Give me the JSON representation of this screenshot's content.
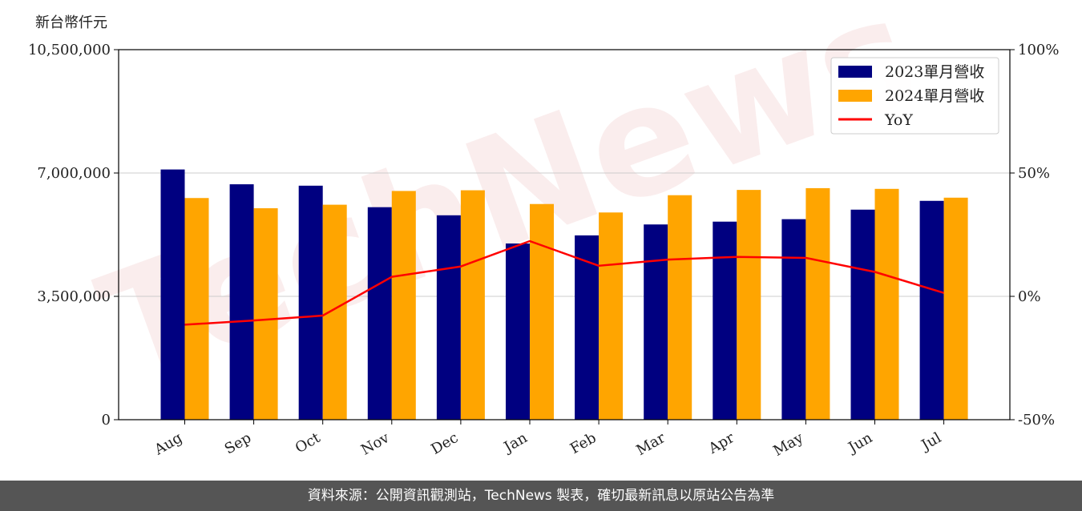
{
  "unit_label": "新台幣仟元",
  "footer_text": "資料來源：公開資訊觀測站，TechNews 製表，確切最新訊息以原站公告為準",
  "watermark_text": "TechNews",
  "colors": {
    "bar2023": "#000080",
    "bar2024": "#FFA500",
    "yoy": "#FF0000",
    "grid": "#cccccc"
  },
  "chart_data": {
    "type": "bar",
    "categories": [
      "Aug",
      "Sep",
      "Oct",
      "Nov",
      "Dec",
      "Jan",
      "Feb",
      "Mar",
      "Apr",
      "May",
      "Jun",
      "Jul"
    ],
    "series": [
      {
        "name": "2023單月營收",
        "values": [
          7100000,
          6680000,
          6640000,
          6030000,
          5800000,
          5000000,
          5230000,
          5540000,
          5620000,
          5690000,
          5960000,
          6210000
        ]
      },
      {
        "name": "2024單月營收",
        "values": [
          6290000,
          6000000,
          6100000,
          6490000,
          6510000,
          6120000,
          5880000,
          6370000,
          6520000,
          6570000,
          6550000,
          6300000
        ]
      },
      {
        "name": "YoY",
        "axis": "right",
        "values": [
          -11.5,
          -9.8,
          -7.8,
          7.9,
          12.1,
          22.4,
          12.4,
          14.9,
          16.0,
          15.6,
          9.9,
          1.4
        ]
      }
    ],
    "yticks_left": [
      "0",
      "3,500,000",
      "7,000,000",
      "10,500,000"
    ],
    "yticks_right": [
      "-50%",
      "0%",
      "50%",
      "100%"
    ],
    "ylim_left": [
      0,
      10500000
    ],
    "ylim_right": [
      -50,
      100
    ],
    "grid": true,
    "legend_position": "top-right",
    "legend": [
      "2023單月營收",
      "2024單月營收",
      "YoY"
    ]
  }
}
